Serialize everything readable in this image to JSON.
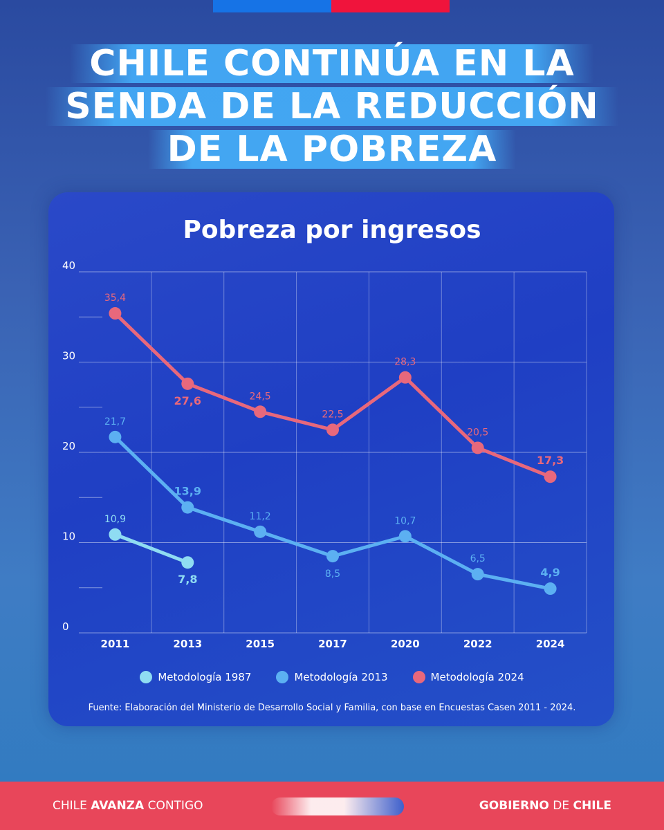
{
  "flag_colors": {
    "blue": "#1673e6",
    "red": "#f0143c"
  },
  "headline": {
    "lines": [
      "CHILE CONTINÚA EN LA",
      "SENDA DE LA REDUCCIÓN",
      "DE LA POBREZA"
    ]
  },
  "chart_data": {
    "type": "line",
    "title": "Pobreza por ingresos",
    "categories": [
      "2011",
      "2013",
      "2015",
      "2017",
      "2020",
      "2022",
      "2024"
    ],
    "ylim": [
      0,
      40
    ],
    "yticks": [
      "0",
      "10",
      "20",
      "30",
      "40"
    ],
    "grid": true,
    "series": [
      {
        "name": "Metodología 1987",
        "color": "#8fdcf2",
        "values": [
          10.9,
          7.8,
          null,
          null,
          null,
          null,
          null
        ],
        "labels": [
          "10,9",
          "7,8",
          "",
          "",
          "",
          "",
          ""
        ]
      },
      {
        "name": "Metodología 2013",
        "color": "#5cb0f2",
        "values": [
          21.7,
          13.9,
          11.2,
          8.5,
          10.7,
          6.5,
          4.9
        ],
        "labels": [
          "21,7",
          "13,9",
          "11,2",
          "8,5",
          "10,7",
          "6,5",
          "4,9"
        ]
      },
      {
        "name": "Metodología 2024",
        "color": "#e8687c",
        "values": [
          35.4,
          27.6,
          24.5,
          22.5,
          28.3,
          20.5,
          17.3
        ],
        "labels": [
          "35,4",
          "27,6",
          "24,5",
          "22,5",
          "28,3",
          "20,5",
          "17,3"
        ]
      }
    ],
    "legend_position": "bottom",
    "source": "Fuente: Elaboración del Ministerio de Desarrollo Social y Familia, con base en Encuestas Casen 2011 - 2024."
  },
  "footer": {
    "left_a": "CHILE ",
    "left_b": "AVANZA",
    "left_c": " CONTIGO",
    "right_a": "GOBIERNO",
    "right_b": " DE ",
    "right_c": "CHILE"
  }
}
